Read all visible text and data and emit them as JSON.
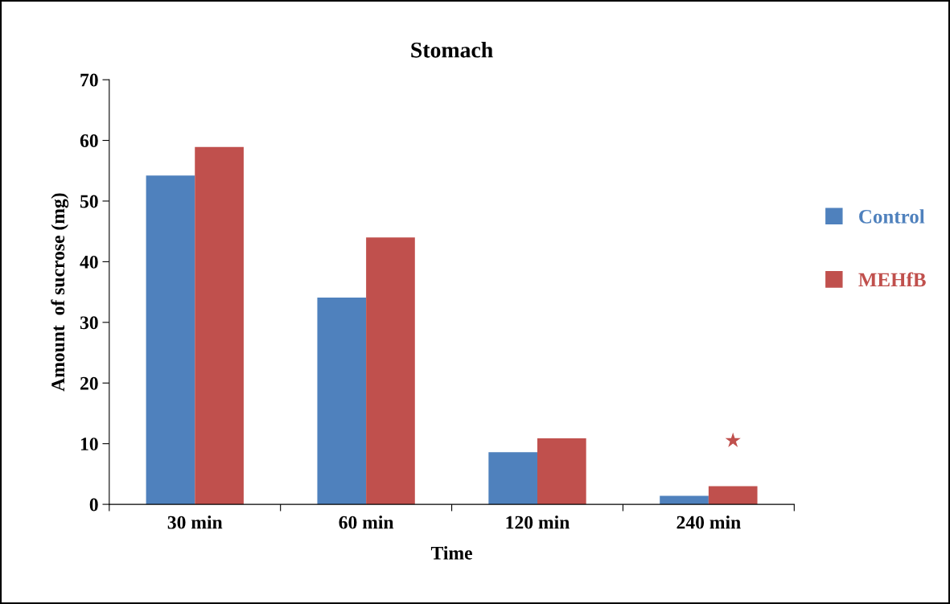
{
  "chart_data": {
    "type": "bar",
    "title": "Stomach",
    "xlabel": "Time",
    "ylabel": "Amount  of sucrose (mg)",
    "categories": [
      "30 min",
      "60 min",
      "120 min",
      "240 min"
    ],
    "series": [
      {
        "name": "Control",
        "color": "#4f81bd",
        "values": [
          54.2,
          34.1,
          8.6,
          1.4
        ]
      },
      {
        "name": "MEHfB",
        "color": "#c0504d",
        "values": [
          58.9,
          44.0,
          10.9,
          3.0
        ]
      }
    ],
    "ylim": [
      0,
      70
    ],
    "yticks": [
      0,
      10,
      20,
      30,
      40,
      50,
      60,
      70
    ],
    "grid": false,
    "legend": "right",
    "annotations": [
      "★"
    ]
  }
}
